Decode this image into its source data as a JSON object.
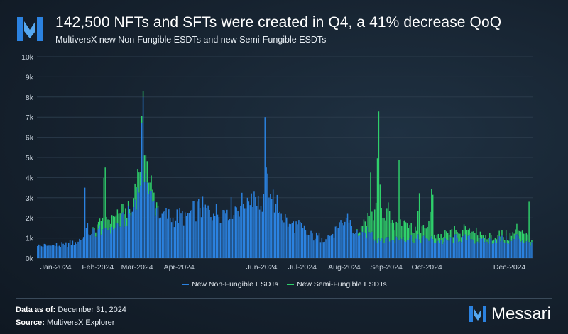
{
  "header": {
    "title": "142,500 NFTs and SFTs were created in Q4, a 41% decrease QoQ",
    "subtitle": "MultiversX new Non-Fungible ESDTs and new Semi-Fungible ESDTs"
  },
  "footer": {
    "data_as_of_label": "Data as of:",
    "data_as_of_value": "December 31, 2024",
    "source_label": "Source:",
    "source_value": "MultiversX Explorer",
    "brand": "Messari"
  },
  "colors": {
    "nft": "#2b82e0",
    "sft": "#2fd06b",
    "grid": "#2a3a4a"
  },
  "chart_data": {
    "type": "bar",
    "stacked": true,
    "title": "142,500 NFTs and SFTs were created in Q4, a 41% decrease QoQ",
    "subtitle": "MultiversX new Non-Fungible ESDTs and new Semi-Fungible ESDTs",
    "xlabel": "",
    "ylabel": "",
    "ylim": [
      0,
      10000
    ],
    "yticks": [
      0,
      1000,
      2000,
      3000,
      4000,
      5000,
      6000,
      7000,
      8000,
      9000,
      10000
    ],
    "ytick_labels": [
      "0k",
      "1k",
      "2k",
      "3k",
      "4k",
      "5k",
      "6k",
      "7k",
      "8k",
      "9k",
      "10k"
    ],
    "x_tick_labels": [
      "Jan-2024",
      "Feb-2024",
      "Mar-2024",
      "Apr-2024",
      "Jun-2024",
      "Jul-2024",
      "Aug-2024",
      "Sep-2024",
      "Oct-2024",
      "Dec-2024"
    ],
    "x_tick_day_index": [
      14,
      45,
      74,
      105,
      166,
      196,
      227,
      258,
      288,
      349
    ],
    "granularity": "daily",
    "series_names": [
      "New Non-Fungible ESDTs",
      "New Semi-Fungible ESDTs"
    ],
    "legend": [
      "New Non-Fungible ESDTs",
      "New Semi-Fungible ESDTs"
    ],
    "legend_position": "bottom-center",
    "anchors_note": "daily values interpolated between key points read from the chart",
    "nft_anchors": [
      [
        0,
        600
      ],
      [
        10,
        620
      ],
      [
        20,
        650
      ],
      [
        28,
        800
      ],
      [
        34,
        1050
      ],
      [
        35,
        3500
      ],
      [
        36,
        1500
      ],
      [
        40,
        1200
      ],
      [
        45,
        1450
      ],
      [
        50,
        1500
      ],
      [
        55,
        1550
      ],
      [
        60,
        1700
      ],
      [
        65,
        1950
      ],
      [
        70,
        2300
      ],
      [
        72,
        2900
      ],
      [
        74,
        3500
      ],
      [
        76,
        3600
      ],
      [
        78,
        8000
      ],
      [
        79,
        3800
      ],
      [
        80,
        4200
      ],
      [
        82,
        3200
      ],
      [
        85,
        2800
      ],
      [
        88,
        2500
      ],
      [
        92,
        2200
      ],
      [
        100,
        2000
      ],
      [
        110,
        2100
      ],
      [
        120,
        2500
      ],
      [
        130,
        2200
      ],
      [
        140,
        2400
      ],
      [
        150,
        2600
      ],
      [
        155,
        3000
      ],
      [
        160,
        3300
      ],
      [
        163,
        3100
      ],
      [
        165,
        2600
      ],
      [
        166,
        2300
      ],
      [
        167,
        3200
      ],
      [
        168,
        7000
      ],
      [
        169,
        4500
      ],
      [
        170,
        4200
      ],
      [
        172,
        3200
      ],
      [
        176,
        2700
      ],
      [
        180,
        2200
      ],
      [
        186,
        1700
      ],
      [
        196,
        1500
      ],
      [
        200,
        1150
      ],
      [
        210,
        1000
      ],
      [
        218,
        1200
      ],
      [
        222,
        1500
      ],
      [
        227,
        1800
      ],
      [
        229,
        2200
      ],
      [
        231,
        1900
      ],
      [
        234,
        1200
      ],
      [
        240,
        1300
      ],
      [
        242,
        1250
      ],
      [
        246,
        1250
      ],
      [
        250,
        950
      ],
      [
        258,
        1050
      ],
      [
        262,
        900
      ],
      [
        270,
        1050
      ],
      [
        280,
        950
      ],
      [
        288,
        950
      ],
      [
        300,
        800
      ],
      [
        310,
        1000
      ],
      [
        320,
        950
      ],
      [
        330,
        800
      ],
      [
        340,
        950
      ],
      [
        350,
        850
      ],
      [
        355,
        1100
      ],
      [
        360,
        750
      ],
      [
        365,
        800
      ]
    ],
    "sft_anchors": [
      [
        0,
        0
      ],
      [
        40,
        0
      ],
      [
        45,
        350
      ],
      [
        48,
        550
      ],
      [
        50,
        3000
      ],
      [
        51,
        550
      ],
      [
        60,
        500
      ],
      [
        65,
        500
      ],
      [
        70,
        0
      ],
      [
        72,
        800
      ],
      [
        74,
        900
      ],
      [
        78,
        300
      ],
      [
        79,
        1300
      ],
      [
        80,
        900
      ],
      [
        86,
        400
      ],
      [
        90,
        0
      ],
      [
        235,
        0
      ],
      [
        240,
        300
      ],
      [
        245,
        800
      ],
      [
        246,
        3000
      ],
      [
        247,
        1000
      ],
      [
        250,
        1800
      ],
      [
        251,
        4200
      ],
      [
        252,
        6300
      ],
      [
        253,
        2800
      ],
      [
        254,
        1500
      ],
      [
        256,
        1200
      ],
      [
        258,
        1400
      ],
      [
        262,
        1000
      ],
      [
        266,
        700
      ],
      [
        267,
        4000
      ],
      [
        268,
        900
      ],
      [
        270,
        800
      ],
      [
        274,
        600
      ],
      [
        278,
        500
      ],
      [
        280,
        400
      ],
      [
        282,
        2300
      ],
      [
        283,
        500
      ],
      [
        288,
        600
      ],
      [
        292,
        2200
      ],
      [
        293,
        400
      ],
      [
        295,
        300
      ],
      [
        300,
        250
      ],
      [
        305,
        350
      ],
      [
        310,
        300
      ],
      [
        316,
        400
      ],
      [
        320,
        300
      ],
      [
        324,
        700
      ],
      [
        325,
        300
      ],
      [
        330,
        200
      ],
      [
        340,
        200
      ],
      [
        350,
        250
      ],
      [
        358,
        500
      ],
      [
        362,
        300
      ],
      [
        363,
        2000
      ],
      [
        364,
        200
      ],
      [
        365,
        100
      ]
    ]
  }
}
